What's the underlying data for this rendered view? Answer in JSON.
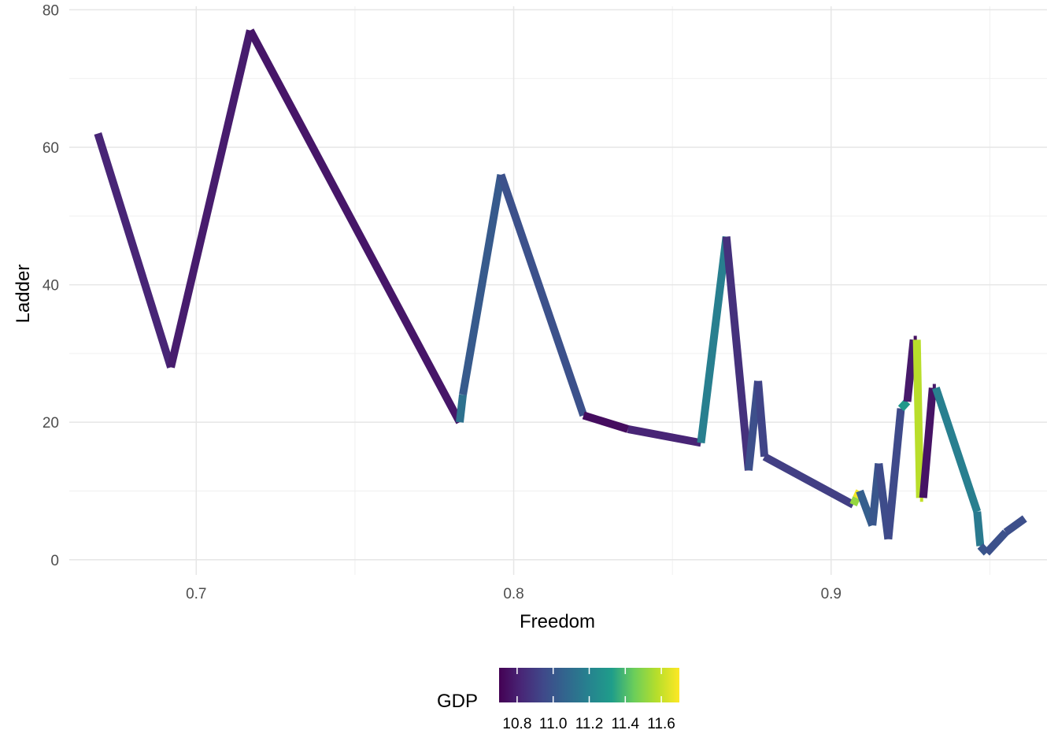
{
  "chart_data": {
    "type": "line",
    "xlabel": "Freedom",
    "ylabel": "Ladder",
    "xlim": [
      0.66,
      0.968
    ],
    "ylim": [
      -2.2,
      80.5
    ],
    "x_ticks": [
      0.7,
      0.8,
      0.9
    ],
    "x_tick_labels": [
      "0.7",
      "0.8",
      "0.9"
    ],
    "y_ticks": [
      0,
      20,
      40,
      60,
      80
    ],
    "y_tick_labels": [
      "0",
      "20",
      "40",
      "60",
      "80"
    ],
    "grid": true,
    "legend": {
      "title": "GDP",
      "placement": "bottom",
      "type": "colorbar",
      "range": [
        10.7,
        11.7
      ],
      "breaks": [
        10.8,
        11.0,
        11.2,
        11.4,
        11.6
      ],
      "labels": [
        "10.8",
        "11.0",
        "11.2",
        "11.4",
        "11.6"
      ],
      "palette": [
        "#440154",
        "#482777",
        "#3F4A8A",
        "#31678E",
        "#26838F",
        "#1F9D8A",
        "#6CCE5A",
        "#B6DE2B",
        "#FEE825"
      ]
    },
    "series": [
      {
        "points": [
          {
            "x": 0.669,
            "y": 62,
            "gdp": 10.82
          },
          {
            "x": 0.692,
            "y": 28,
            "gdp": 10.79
          },
          {
            "x": 0.717,
            "y": 77,
            "gdp": 10.77
          },
          {
            "x": 0.783,
            "y": 20,
            "gdp": 11.12
          },
          {
            "x": 0.784,
            "y": 24,
            "gdp": 11.02
          },
          {
            "x": 0.796,
            "y": 56,
            "gdp": 10.98
          },
          {
            "x": 0.822,
            "y": 21,
            "gdp": 10.74
          },
          {
            "x": 0.836,
            "y": 19,
            "gdp": 10.82
          },
          {
            "x": 0.859,
            "y": 17,
            "gdp": 11.18
          },
          {
            "x": 0.867,
            "y": 47,
            "gdp": 10.86
          },
          {
            "x": 0.874,
            "y": 13,
            "gdp": 10.97
          },
          {
            "x": 0.877,
            "y": 26,
            "gdp": 10.93
          },
          {
            "x": 0.879,
            "y": 15,
            "gdp": 10.91
          },
          {
            "x": 0.907,
            "y": 8,
            "gdp": 11.52
          },
          {
            "x": 0.908,
            "y": 9,
            "gdp": 11.68
          },
          {
            "x": 0.909,
            "y": 10,
            "gdp": 11.04
          },
          {
            "x": 0.913,
            "y": 5,
            "gdp": 11.0
          },
          {
            "x": 0.915,
            "y": 14,
            "gdp": 10.96
          },
          {
            "x": 0.918,
            "y": 3,
            "gdp": 10.95
          },
          {
            "x": 0.922,
            "y": 22,
            "gdp": 11.3
          },
          {
            "x": 0.924,
            "y": 23,
            "gdp": 10.78
          },
          {
            "x": 0.926,
            "y": 32,
            "gdp": 10.75
          },
          {
            "x": 0.927,
            "y": 32,
            "gdp": 11.58
          },
          {
            "x": 0.928,
            "y": 9,
            "gdp": 11.6
          },
          {
            "x": 0.929,
            "y": 9,
            "gdp": 10.76
          },
          {
            "x": 0.932,
            "y": 25,
            "gdp": 10.78
          },
          {
            "x": 0.933,
            "y": 25,
            "gdp": 11.18
          },
          {
            "x": 0.946,
            "y": 7,
            "gdp": 11.16
          },
          {
            "x": 0.947,
            "y": 2,
            "gdp": 11.0
          },
          {
            "x": 0.949,
            "y": 1,
            "gdp": 10.98
          },
          {
            "x": 0.955,
            "y": 4,
            "gdp": 10.97
          },
          {
            "x": 0.961,
            "y": 6,
            "gdp": 11.02
          }
        ]
      }
    ]
  }
}
